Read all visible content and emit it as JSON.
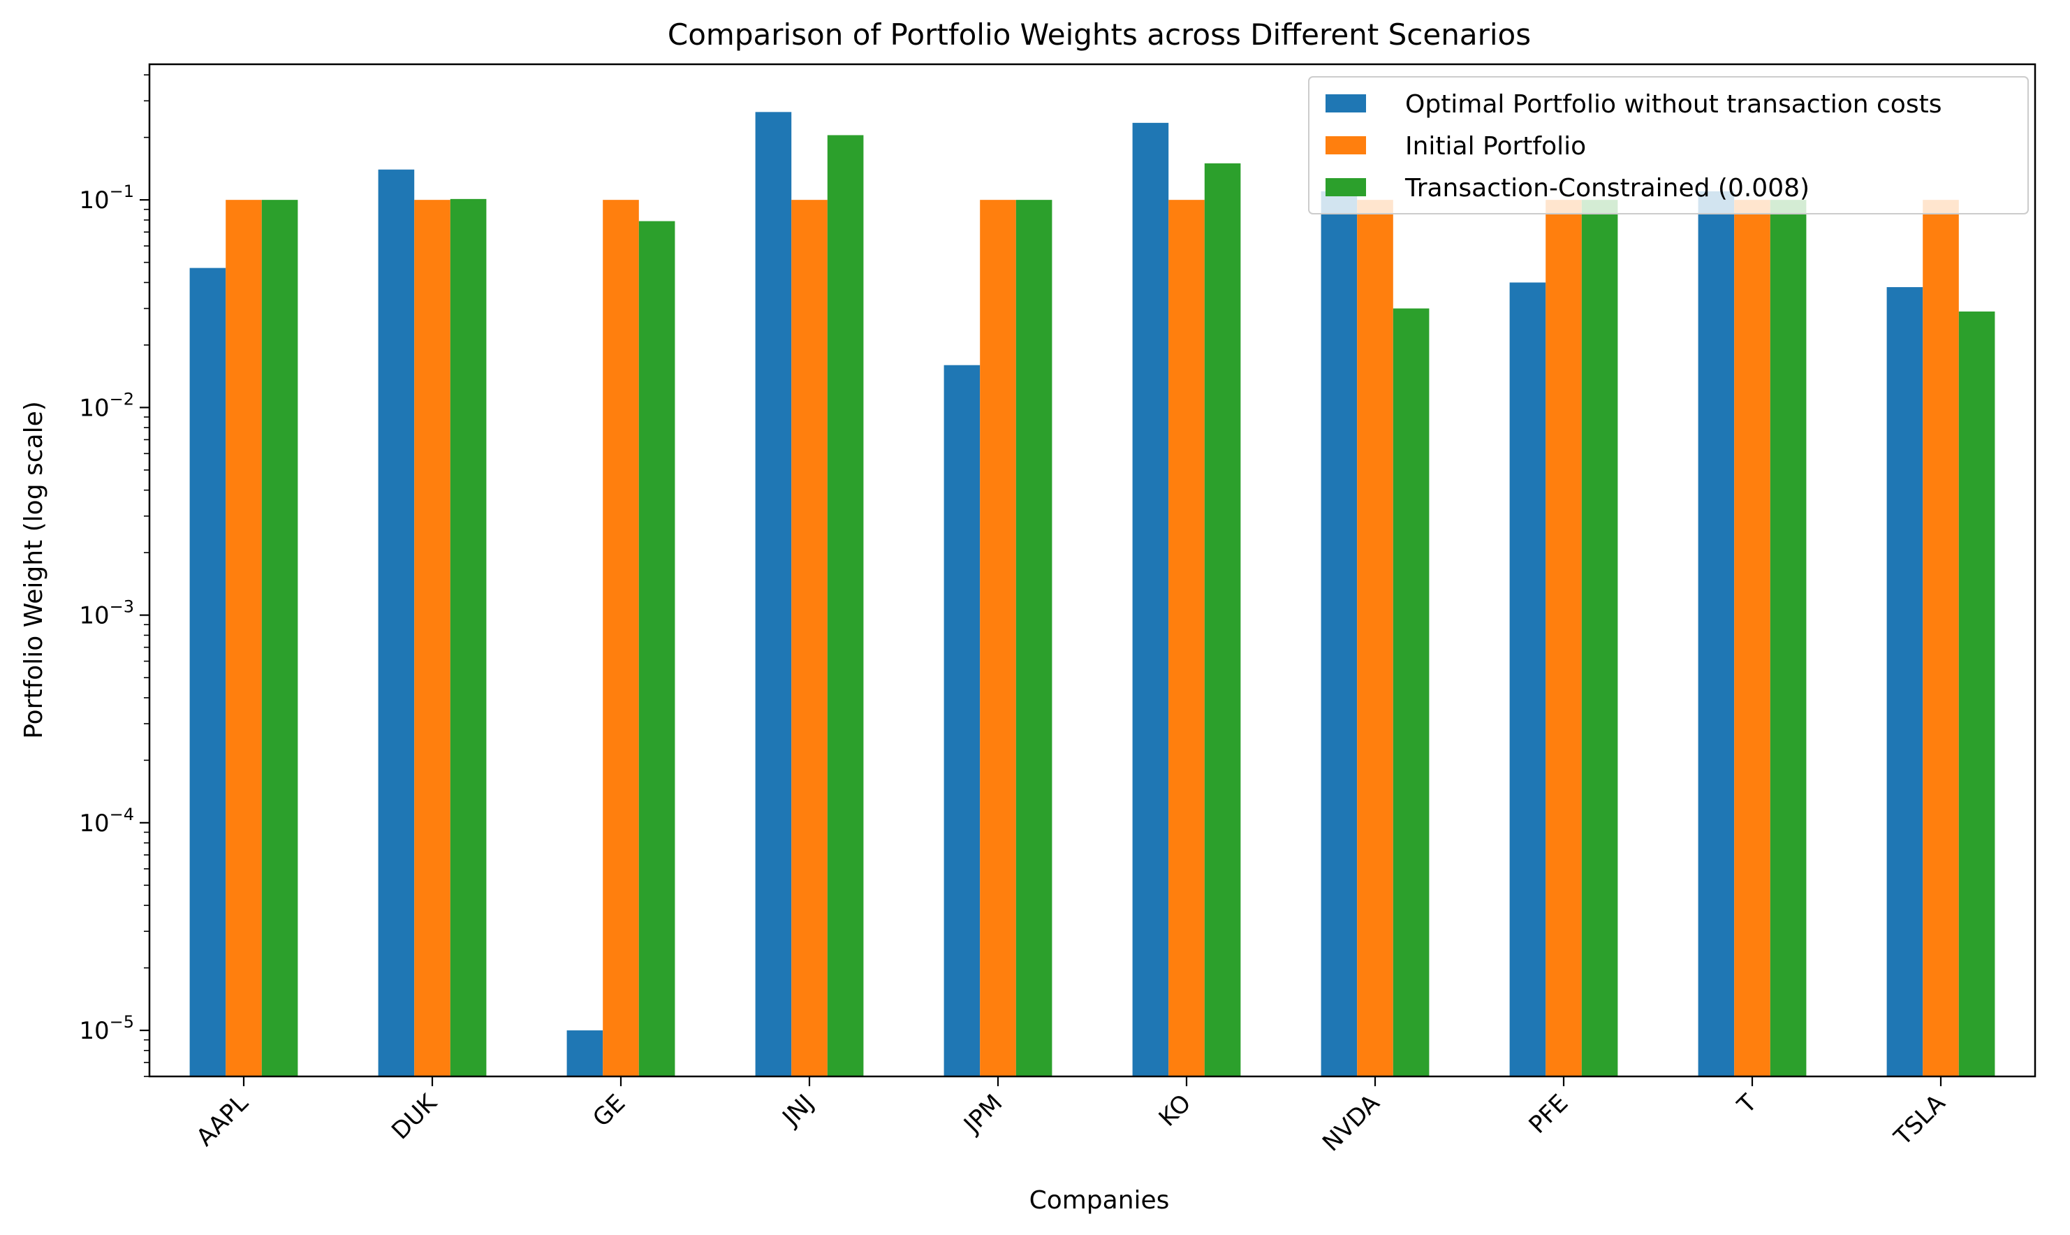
{
  "chart_data": {
    "type": "bar",
    "title": "Comparison of Portfolio Weights across Different Scenarios",
    "xlabel": "Companies",
    "ylabel": "Portfolio Weight (log scale)",
    "yscale": "log",
    "ylim": [
      6e-06,
      0.45
    ],
    "y_ticks": [
      {
        "value": 0.1,
        "base": "10",
        "exp": "−1"
      },
      {
        "value": 0.01,
        "base": "10",
        "exp": "−2"
      },
      {
        "value": 0.001,
        "base": "10",
        "exp": "−3"
      },
      {
        "value": 0.0001,
        "base": "10",
        "exp": "−4"
      },
      {
        "value": 1e-05,
        "base": "10",
        "exp": "−5"
      }
    ],
    "categories": [
      "AAPL",
      "DUK",
      "GE",
      "JNJ",
      "JPM",
      "KO",
      "NVDA",
      "PFE",
      "T",
      "TSLA"
    ],
    "series": [
      {
        "name": "Optimal Portfolio without transaction costs",
        "color": "#1f77b4",
        "values": [
          0.047,
          0.14,
          1e-05,
          0.265,
          0.016,
          0.235,
          0.11,
          0.04,
          0.11,
          0.038
        ]
      },
      {
        "name": "Initial Portfolio",
        "color": "#ff7f0e",
        "values": [
          0.1,
          0.1,
          0.1,
          0.1,
          0.1,
          0.1,
          0.1,
          0.1,
          0.1,
          0.1
        ]
      },
      {
        "name": "Transaction-Constrained (0.008)",
        "color": "#2ca02c",
        "values": [
          0.1,
          0.101,
          0.079,
          0.205,
          0.1,
          0.15,
          0.03,
          0.1,
          0.1,
          0.029
        ]
      }
    ],
    "grid": false,
    "legend_position": "top-right"
  }
}
